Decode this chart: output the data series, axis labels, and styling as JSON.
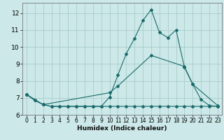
{
  "title": "",
  "xlabel": "Humidex (Indice chaleur)",
  "bg_color": "#cce8e8",
  "grid_color": "#aacccc",
  "line_color": "#1a6b6b",
  "xlim": [
    -0.5,
    23.5
  ],
  "ylim": [
    6.0,
    12.6
  ],
  "yticks": [
    6,
    7,
    8,
    9,
    10,
    11,
    12
  ],
  "xticks": [
    0,
    1,
    2,
    3,
    4,
    5,
    6,
    7,
    8,
    9,
    10,
    11,
    12,
    13,
    14,
    15,
    16,
    17,
    18,
    19,
    20,
    21,
    22,
    23
  ],
  "line1_x": [
    0,
    1,
    2,
    3,
    4,
    5,
    6,
    7,
    8,
    9,
    10,
    11,
    12,
    13,
    14,
    15,
    16,
    17,
    18,
    19,
    20,
    21,
    22,
    23
  ],
  "line1_y": [
    7.2,
    6.85,
    6.6,
    6.5,
    6.5,
    6.5,
    6.5,
    6.5,
    6.5,
    6.5,
    6.5,
    6.5,
    6.5,
    6.5,
    6.5,
    6.5,
    6.5,
    6.5,
    6.5,
    6.5,
    6.5,
    6.5,
    6.5,
    6.5
  ],
  "line2_x": [
    0,
    1,
    2,
    3,
    4,
    5,
    6,
    7,
    8,
    9,
    10,
    11,
    12,
    13,
    14,
    15,
    16,
    17,
    18,
    19,
    20,
    21,
    22,
    23
  ],
  "line2_y": [
    7.2,
    6.85,
    6.6,
    6.5,
    6.5,
    6.5,
    6.5,
    6.5,
    6.5,
    6.5,
    7.05,
    8.35,
    9.6,
    10.5,
    11.55,
    12.2,
    10.85,
    10.55,
    11.0,
    8.8,
    7.8,
    6.9,
    6.55,
    6.5
  ],
  "line3_x": [
    0,
    2,
    10,
    11,
    15,
    19,
    20,
    23
  ],
  "line3_y": [
    7.2,
    6.6,
    7.3,
    7.7,
    9.5,
    8.85,
    7.8,
    6.55
  ]
}
